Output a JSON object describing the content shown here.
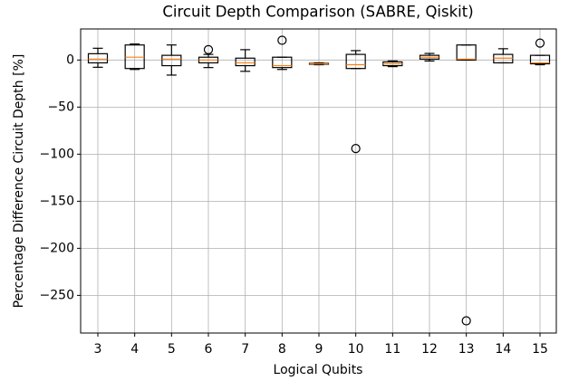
{
  "chart_data": {
    "type": "box",
    "title": "Circuit Depth Comparison (SABRE, Qiskit)",
    "xlabel": "Logical Qubits",
    "ylabel": "Percentage Difference Circuit Depth  [%]",
    "categories": [
      "3",
      "4",
      "5",
      "6",
      "7",
      "8",
      "9",
      "10",
      "11",
      "12",
      "13",
      "14",
      "15"
    ],
    "boxes": [
      {
        "whislo": -7.7,
        "q1": -3,
        "med": 1,
        "q3": 6.7,
        "whishi": 12.5
      },
      {
        "whislo": -10,
        "q1": -9,
        "med": 3,
        "q3": 16,
        "whishi": 17
      },
      {
        "whislo": -16,
        "q1": -6,
        "med": 1,
        "q3": 5,
        "whishi": 16
      },
      {
        "whislo": -8,
        "q1": -3,
        "med": 0,
        "q3": 3,
        "whishi": 6,
        "fliers": [
          11
        ]
      },
      {
        "whislo": -12,
        "q1": -6,
        "med": -3,
        "q3": 2,
        "whishi": 11
      },
      {
        "whislo": -10,
        "q1": -8,
        "med": -6,
        "q3": 3,
        "whishi": 3,
        "fliers": [
          21
        ]
      },
      {
        "whislo": -5,
        "q1": -4.5,
        "med": -4,
        "q3": -3.5,
        "whishi": -3
      },
      {
        "whislo": -9,
        "q1": -9,
        "med": -5,
        "q3": 6,
        "whishi": 10,
        "fliers": [
          -94
        ]
      },
      {
        "whislo": -7,
        "q1": -6,
        "med": -4,
        "q3": -2,
        "whishi": -1
      },
      {
        "whislo": -1,
        "q1": 1,
        "med": 3,
        "q3": 5,
        "whishi": 7
      },
      {
        "whislo": 0,
        "q1": 0,
        "med": 1,
        "q3": 16,
        "whishi": 16,
        "fliers": [
          -277
        ]
      },
      {
        "whislo": -3,
        "q1": -3,
        "med": 2,
        "q3": 6,
        "whishi": 12
      },
      {
        "whislo": -5,
        "q1": -4,
        "med": -3,
        "q3": 5,
        "whishi": 5,
        "fliers": [
          18
        ]
      }
    ],
    "box_color": "#000000",
    "median_color": "#ff7f0e",
    "ylim": [
      -290,
      33
    ],
    "yticks": [
      0,
      {
        "value": -50,
        "label": "−50"
      },
      {
        "value": -100,
        "label": "−100"
      },
      {
        "value": -150,
        "label": "−150"
      },
      {
        "value": -200,
        "label": "−200"
      },
      {
        "value": -250,
        "label": "−250"
      }
    ],
    "grid": true
  }
}
